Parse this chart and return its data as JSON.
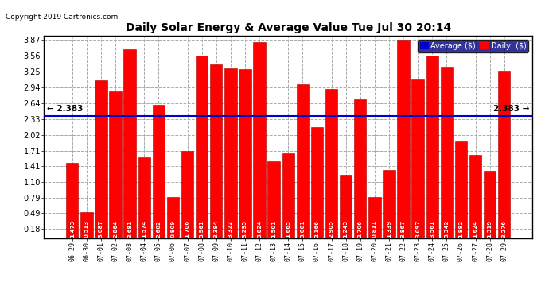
{
  "title": "Daily Solar Energy & Average Value Tue Jul 30 20:14",
  "copyright": "Copyright 2019 Cartronics.com",
  "average_value": 2.383,
  "categories": [
    "06-29",
    "06-30",
    "07-01",
    "07-02",
    "07-03",
    "07-04",
    "07-05",
    "07-06",
    "07-07",
    "07-08",
    "07-09",
    "07-10",
    "07-11",
    "07-12",
    "07-13",
    "07-14",
    "07-15",
    "07-16",
    "07-17",
    "07-18",
    "07-19",
    "07-20",
    "07-21",
    "07-22",
    "07-23",
    "07-24",
    "07-25",
    "07-26",
    "07-27",
    "07-28",
    "07-29"
  ],
  "values": [
    1.473,
    0.513,
    3.087,
    2.864,
    3.681,
    1.574,
    2.602,
    0.809,
    1.706,
    3.561,
    3.394,
    3.322,
    3.295,
    3.824,
    1.501,
    1.665,
    3.001,
    2.166,
    2.905,
    1.243,
    2.706,
    0.811,
    1.339,
    3.867,
    3.097,
    3.561,
    3.342,
    1.892,
    1.624,
    1.319,
    3.276
  ],
  "bar_color": "#FF0000",
  "bar_edge_color": "#AA0000",
  "avg_line_color": "#0000CC",
  "background_color": "#FFFFFF",
  "plot_bg_color": "#FFFFFF",
  "yticks": [
    0.18,
    0.49,
    0.79,
    1.1,
    1.41,
    1.71,
    2.02,
    2.33,
    2.64,
    2.94,
    3.25,
    3.56,
    3.87
  ],
  "legend_avg_color": "#0000CC",
  "legend_daily_color": "#FF0000",
  "ymin": 0.0,
  "ymax": 3.95
}
